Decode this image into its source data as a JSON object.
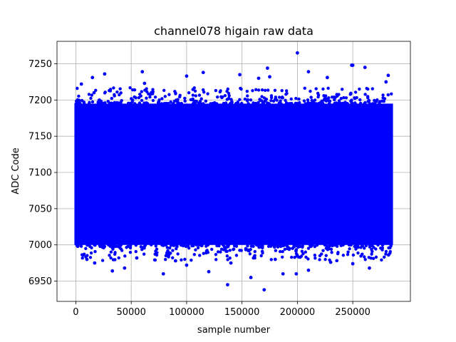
{
  "chart_data": {
    "type": "scatter",
    "title": "channel078 higain raw data",
    "xlabel": "sample number",
    "ylabel": "ADC Code",
    "xlim": [
      -17000,
      302000
    ],
    "ylim": [
      6922,
      7281
    ],
    "x_ticks": [
      0,
      50000,
      100000,
      150000,
      200000,
      250000
    ],
    "x_tick_labels": [
      "0",
      "50000",
      "100000",
      "150000",
      "200000",
      "250000"
    ],
    "y_ticks": [
      6950,
      7000,
      7050,
      7100,
      7150,
      7200,
      7250
    ],
    "y_tick_labels": [
      "6950",
      "7000",
      "7050",
      "7100",
      "7150",
      "7200",
      "7250"
    ],
    "grid": true,
    "marker_color": "#0000ff",
    "series": [
      {
        "x_range": [
          0,
          285000
        ],
        "dense_band": [
          7000,
          7195
        ],
        "outliers": [
          [
            200000,
            7265
          ],
          [
            249000,
            7248
          ],
          [
            250000,
            7248
          ],
          [
            261000,
            7245
          ],
          [
            173000,
            7244
          ],
          [
            60000,
            7239
          ],
          [
            210000,
            7239
          ],
          [
            26000,
            7236
          ],
          [
            148000,
            7235
          ],
          [
            100000,
            7233
          ],
          [
            175000,
            7232
          ],
          [
            282000,
            7234
          ],
          [
            15000,
            7231
          ],
          [
            115000,
            7238
          ],
          [
            165000,
            7230
          ],
          [
            5000,
            7222
          ],
          [
            138000,
            7202
          ],
          [
            227000,
            7231
          ],
          [
            280000,
            7225
          ],
          [
            62000,
            7223
          ],
          [
            170000,
            6938
          ],
          [
            137000,
            6945
          ],
          [
            158000,
            6955
          ],
          [
            79000,
            6960
          ],
          [
            187000,
            6960
          ],
          [
            199000,
            6960
          ],
          [
            210000,
            6965
          ],
          [
            120000,
            6963
          ],
          [
            33000,
            6964
          ],
          [
            44000,
            6968
          ],
          [
            265000,
            6968
          ],
          [
            17000,
            6975
          ],
          [
            100000,
            6972
          ],
          [
            140000,
            6975
          ],
          [
            250000,
            6974
          ],
          [
            230000,
            6976
          ],
          [
            10000,
            6980
          ],
          [
            55000,
            6982
          ],
          [
            90000,
            6978
          ],
          [
            180000,
            6980
          ]
        ]
      }
    ]
  }
}
